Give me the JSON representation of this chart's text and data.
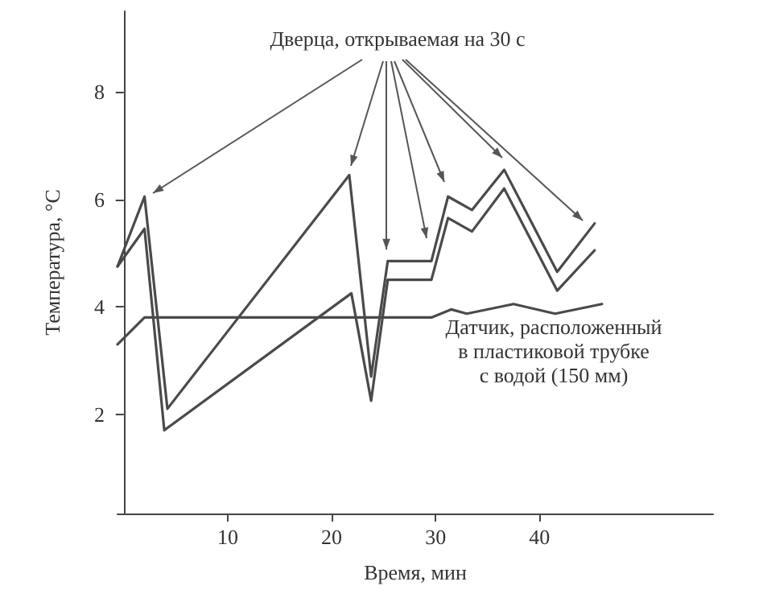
{
  "chart_data": {
    "type": "line",
    "xlabel": "Время, мин",
    "ylabel": "Температура, °C",
    "annotations": [
      "Дверца, открываемая на 30 с",
      "Датчик, расположенный\nв пластиковой трубке\nс водой (150 мм)"
    ],
    "series": [
      {
        "color": "#4a4a4a",
        "x": [
          -0.6,
          2.0,
          4.2,
          21.7,
          23.8,
          25.4,
          29.6,
          31.2,
          33.5,
          36.6,
          41.7,
          45.3
        ],
        "values": [
          4.75,
          6.05,
          2.1,
          6.45,
          2.7,
          4.85,
          4.85,
          6.05,
          5.8,
          6.55,
          4.65,
          5.55
        ]
      },
      {
        "color": "#4a4a4a",
        "x": [
          -0.6,
          2.0,
          3.9,
          21.9,
          23.8,
          25.4,
          29.6,
          31.2,
          33.5,
          36.6,
          41.7,
          45.3
        ],
        "values": [
          4.75,
          5.45,
          1.7,
          4.25,
          2.25,
          4.5,
          4.5,
          5.65,
          5.4,
          6.2,
          4.3,
          5.05
        ]
      },
      {
        "color": "#4a4a4a",
        "x": [
          -0.6,
          2.0,
          29.6,
          31.5,
          33.0,
          37.5,
          41.5,
          46.0
        ],
        "values": [
          3.3,
          3.8,
          3.8,
          3.95,
          3.87,
          4.05,
          3.87,
          4.05
        ]
      }
    ],
    "xlim": [
      -0.6,
      56.7
    ],
    "xticks": [
      10,
      20,
      30,
      40
    ],
    "ylim": [
      0.15,
      9.5
    ],
    "yticks": [
      2,
      4,
      6,
      8
    ],
    "marker": "none",
    "line_style": "solid"
  }
}
